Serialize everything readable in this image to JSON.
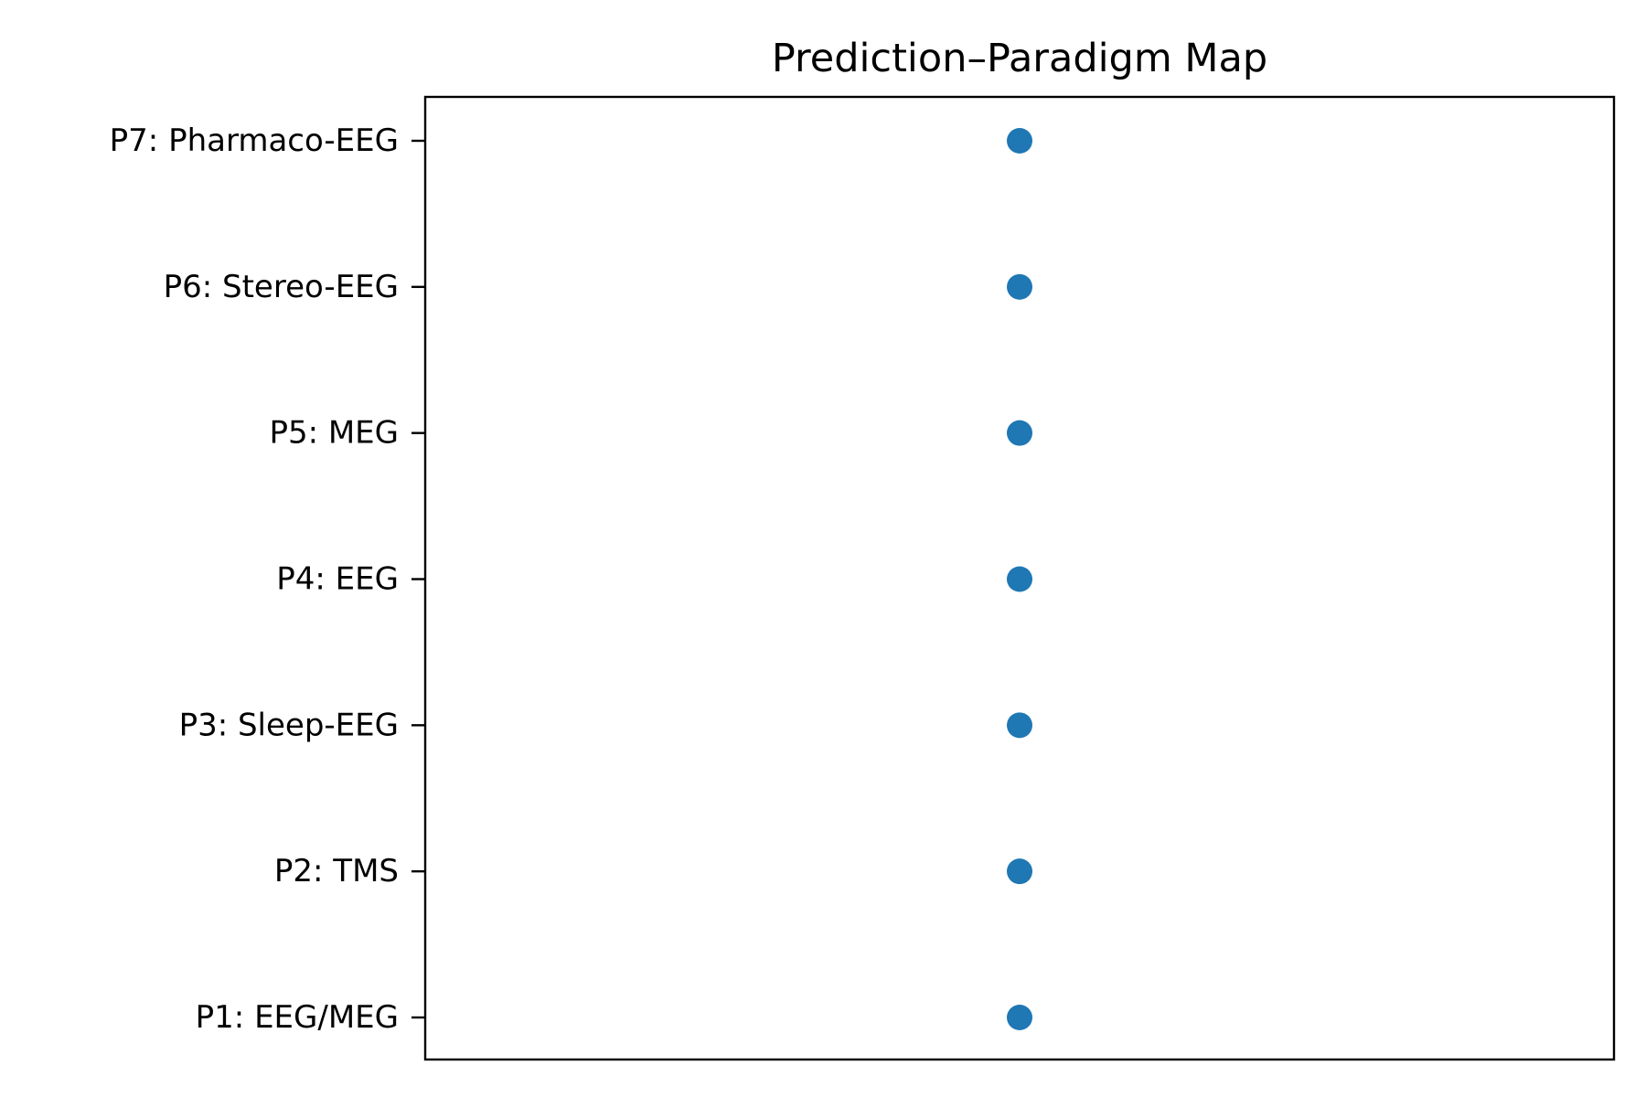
{
  "chart_data": {
    "type": "scatter",
    "title": "Prediction–Paradigm Map",
    "xlabel": "",
    "ylabel": "",
    "x_ticks_visible": false,
    "grid": false,
    "legend": "none",
    "y_categories": [
      "P1: EEG/MEG",
      "P2: TMS",
      "P3: Sleep-EEG",
      "P4: EEG",
      "P5: MEG",
      "P6: Stereo-EEG",
      "P7: Pharmaco-EEG"
    ],
    "xlim": [
      -0.055,
      0.055
    ],
    "series": [
      {
        "color": "#1f77b4",
        "points": [
          {
            "x": 0,
            "y": "P1: EEG/MEG"
          },
          {
            "x": 0,
            "y": "P2: TMS"
          },
          {
            "x": 0,
            "y": "P3: Sleep-EEG"
          },
          {
            "x": 0,
            "y": "P4: EEG"
          },
          {
            "x": 0,
            "y": "P5: MEG"
          },
          {
            "x": 0,
            "y": "P6: Stereo-EEG"
          },
          {
            "x": 0,
            "y": "P7: Pharmaco-EEG"
          }
        ]
      }
    ]
  }
}
